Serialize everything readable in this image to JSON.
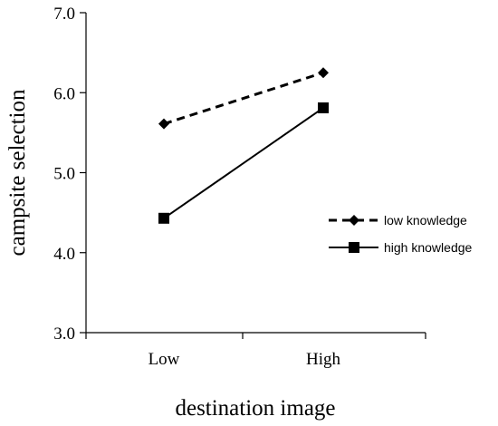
{
  "chart_data": {
    "type": "line",
    "categories": [
      "Low",
      "High"
    ],
    "series": [
      {
        "name": "low knowledge",
        "values": [
          5.61,
          6.25
        ],
        "line_style": "dashed",
        "marker": "diamond",
        "color": "#000000"
      },
      {
        "name": "high knowledge",
        "values": [
          4.43,
          5.81
        ],
        "line_style": "solid",
        "marker": "square",
        "color": "#000000"
      }
    ],
    "xlabel": "destination image",
    "ylabel": "campsite selection",
    "ylim": [
      3.0,
      7.0
    ],
    "yticks": [
      "3.0",
      "4.0",
      "5.0",
      "6.0",
      "7.0"
    ],
    "grid": false,
    "legend_position": "right"
  }
}
